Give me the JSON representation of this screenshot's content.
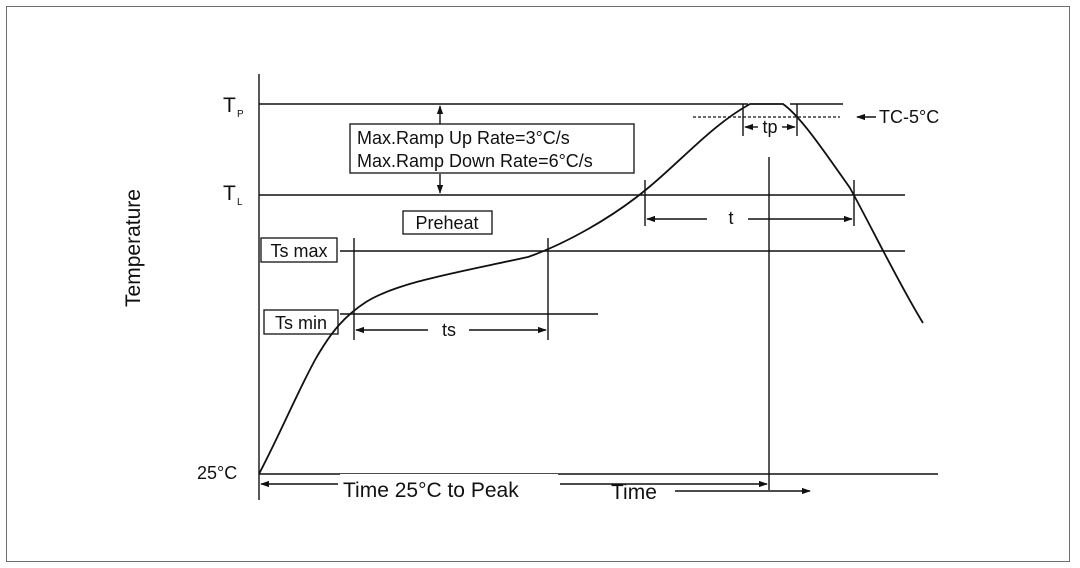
{
  "diagram": {
    "y_axis_label": "Temperature",
    "levels": {
      "tp": {
        "main": "T",
        "sub": "P"
      },
      "tl": {
        "main": "T",
        "sub": "L"
      },
      "ts_max": "Ts max",
      "ts_min": "Ts min",
      "room": "25°C"
    },
    "ramp_box": {
      "line1": "Max.Ramp Up Rate=3°C/s",
      "line2": "Max.Ramp Down Rate=6°C/s"
    },
    "preheat_label": "Preheat",
    "tc_label": "TC-5°C",
    "tp_label": "tp",
    "t_label": "t",
    "ts_label": "ts",
    "time_to_peak_label": "Time 25°C to Peak",
    "x_axis_label": "Time"
  }
}
